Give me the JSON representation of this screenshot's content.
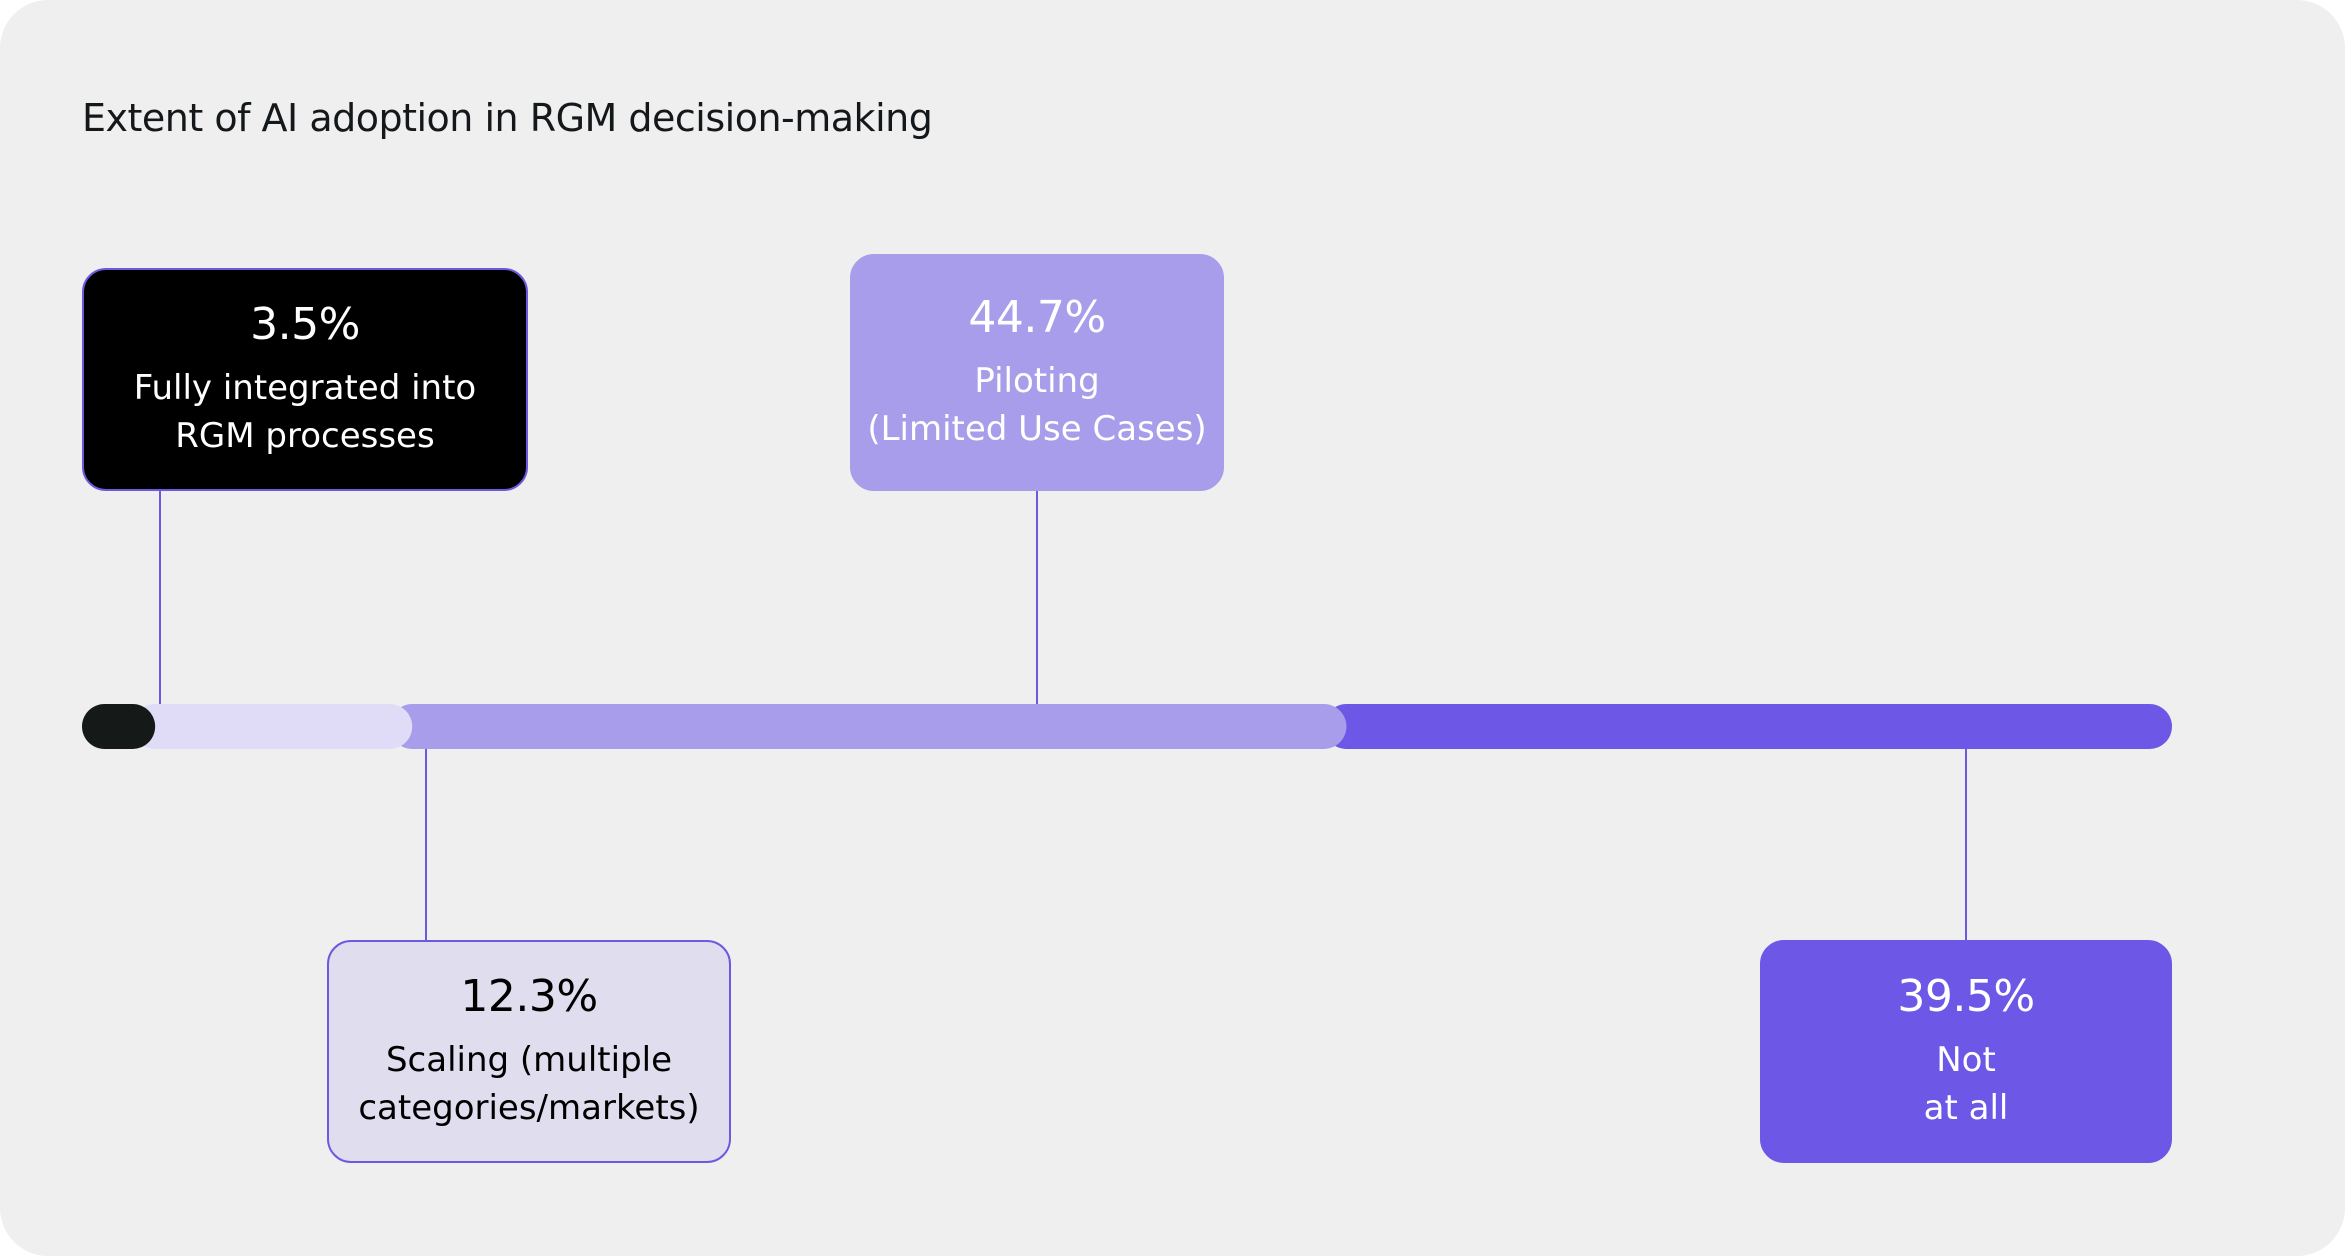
{
  "chart_data": {
    "type": "bar",
    "title": "Extent of AI adoption in RGM decision-making",
    "stacked": true,
    "orientation": "horizontal",
    "categories": [
      "Fully integrated into RGM processes",
      "Scaling (multiple categories/markets)",
      "Piloting (Limited Use Cases)",
      "Not at all"
    ],
    "values": [
      3.5,
      12.3,
      44.7,
      39.5
    ],
    "unit": "%",
    "segments": [
      {
        "pct_label": "3.5%",
        "label": "Fully integrated into\nRGM processes",
        "value": 3.5,
        "bar_color": "#151a19",
        "box_bg": "#000000",
        "box_border": "#6b5ae0",
        "text_color": "#ffffff",
        "placement": "above"
      },
      {
        "pct_label": "12.3%",
        "label": "Scaling (multiple\ncategories/markets)",
        "value": 12.3,
        "bar_color": "#e0dcf8",
        "box_bg": "#e0ddee",
        "box_border": "#6b5ae0",
        "text_color": "#000000",
        "placement": "below"
      },
      {
        "pct_label": "44.7%",
        "label": "Piloting\n(Limited Use Cases)",
        "value": 44.7,
        "bar_color": "#a89dea",
        "box_bg": "#a89dea",
        "box_border": "#a89dea",
        "text_color": "#ffffff",
        "placement": "above"
      },
      {
        "pct_label": "39.5%",
        "label": "Not\nat all",
        "value": 39.5,
        "bar_color": "#6c57e6",
        "box_bg": "#6c57e6",
        "box_border": "#6c57e6",
        "text_color": "#ffffff",
        "placement": "below"
      }
    ],
    "connector_color": "#6b5ae0"
  }
}
